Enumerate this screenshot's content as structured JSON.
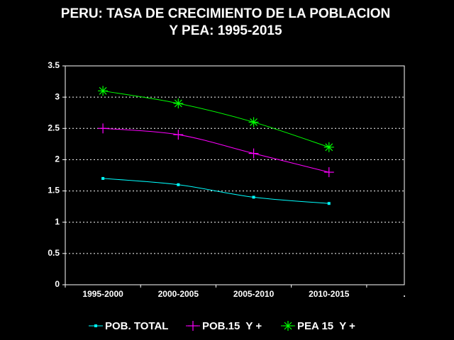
{
  "chart_data": {
    "type": "line",
    "title": [
      "PERU: TASA DE CRECIMIENTO DE LA POBLACION",
      "Y PEA: 1995-2015"
    ],
    "categories": [
      "1995-2000",
      "2000-2005",
      "2005-2010",
      "2010-2015",
      "."
    ],
    "series": [
      {
        "name": "POB. TOTAL",
        "color": "#00ffff",
        "marker": "square",
        "values": [
          1.7,
          1.6,
          1.4,
          1.3,
          null
        ]
      },
      {
        "name": "POB.15  Y +",
        "color": "#ff00ff",
        "marker": "plus",
        "values": [
          2.5,
          2.4,
          2.1,
          1.8,
          null
        ]
      },
      {
        "name": "PEA 15  Y +",
        "color": "#00ff00",
        "marker": "asterisk",
        "values": [
          3.1,
          2.9,
          2.6,
          2.2,
          null
        ]
      }
    ],
    "ylim": [
      0,
      3.5
    ],
    "yticks": [
      0,
      0.5,
      1,
      1.5,
      2,
      2.5,
      3,
      3.5
    ],
    "grid": true,
    "legend": "bottom"
  }
}
